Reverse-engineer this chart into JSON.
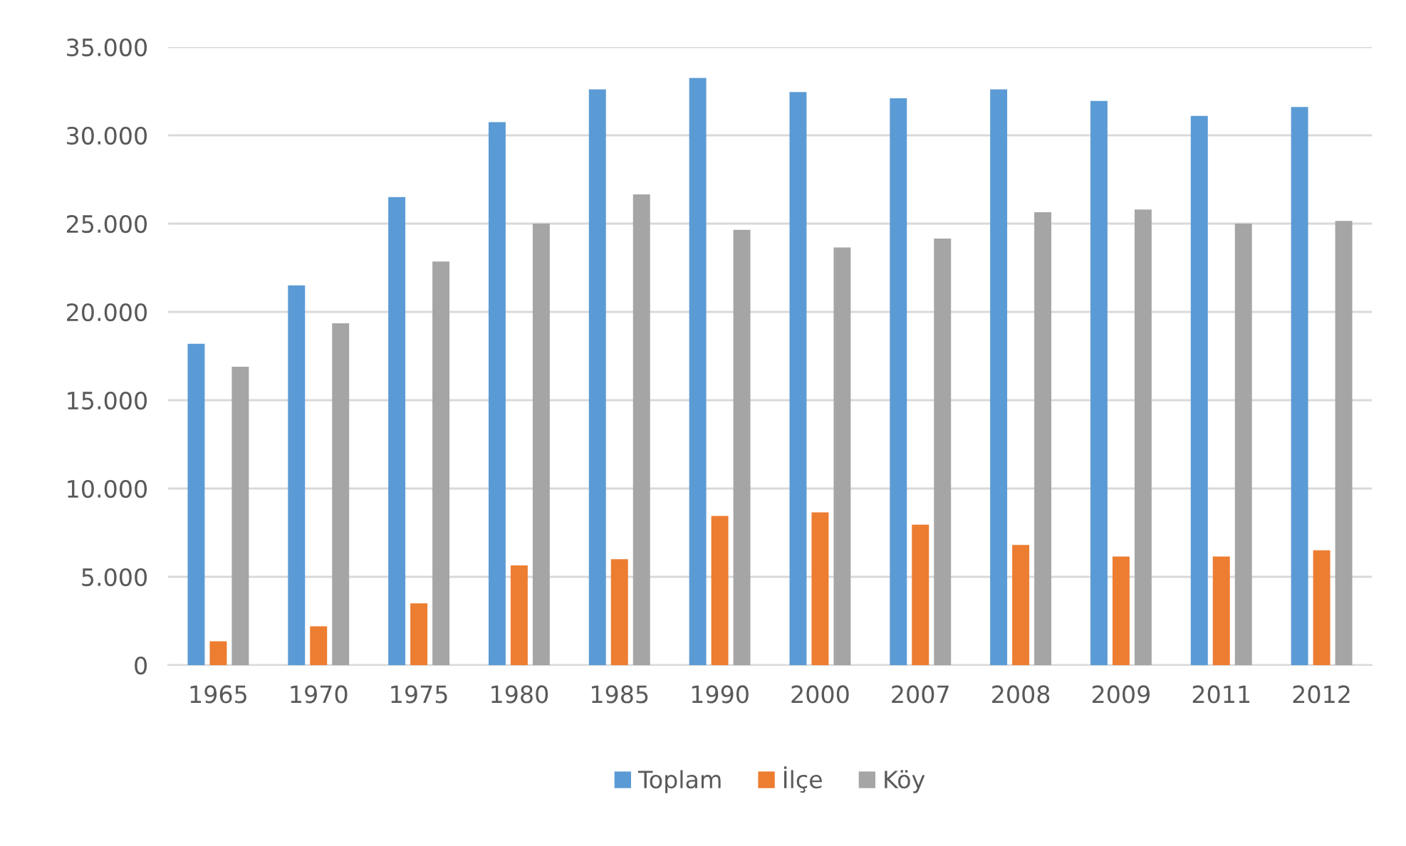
{
  "chart_data": {
    "type": "bar",
    "categories": [
      "1965",
      "1970",
      "1975",
      "1980",
      "1985",
      "1990",
      "2000",
      "2007",
      "2008",
      "2009",
      "2011",
      "2012"
    ],
    "series": [
      {
        "name": "Toplam",
        "color": "#5b9bd5",
        "values": [
          18200,
          21500,
          26500,
          30750,
          32600,
          33250,
          32450,
          32100,
          32600,
          31950,
          31100,
          31600
        ]
      },
      {
        "name": "İlçe",
        "color": "#ed7d31",
        "values": [
          1350,
          2200,
          3500,
          5650,
          6000,
          8450,
          8650,
          7950,
          6800,
          6150,
          6150,
          6500
        ]
      },
      {
        "name": "Köy",
        "color": "#a5a5a5",
        "values": [
          16900,
          19350,
          22850,
          25000,
          26650,
          24650,
          23650,
          24150,
          25650,
          25800,
          25000,
          25150
        ]
      }
    ],
    "ylim": [
      0,
      35000
    ],
    "yticks": [
      {
        "value": 0,
        "label": "0"
      },
      {
        "value": 5000,
        "label": "5.000"
      },
      {
        "value": 10000,
        "label": "10.000"
      },
      {
        "value": 15000,
        "label": "15.000"
      },
      {
        "value": 20000,
        "label": "20.000"
      },
      {
        "value": 25000,
        "label": "25.000"
      },
      {
        "value": 30000,
        "label": "30.000"
      },
      {
        "value": 35000,
        "label": "35.000"
      }
    ],
    "grid": "y",
    "legend": "bottom"
  }
}
